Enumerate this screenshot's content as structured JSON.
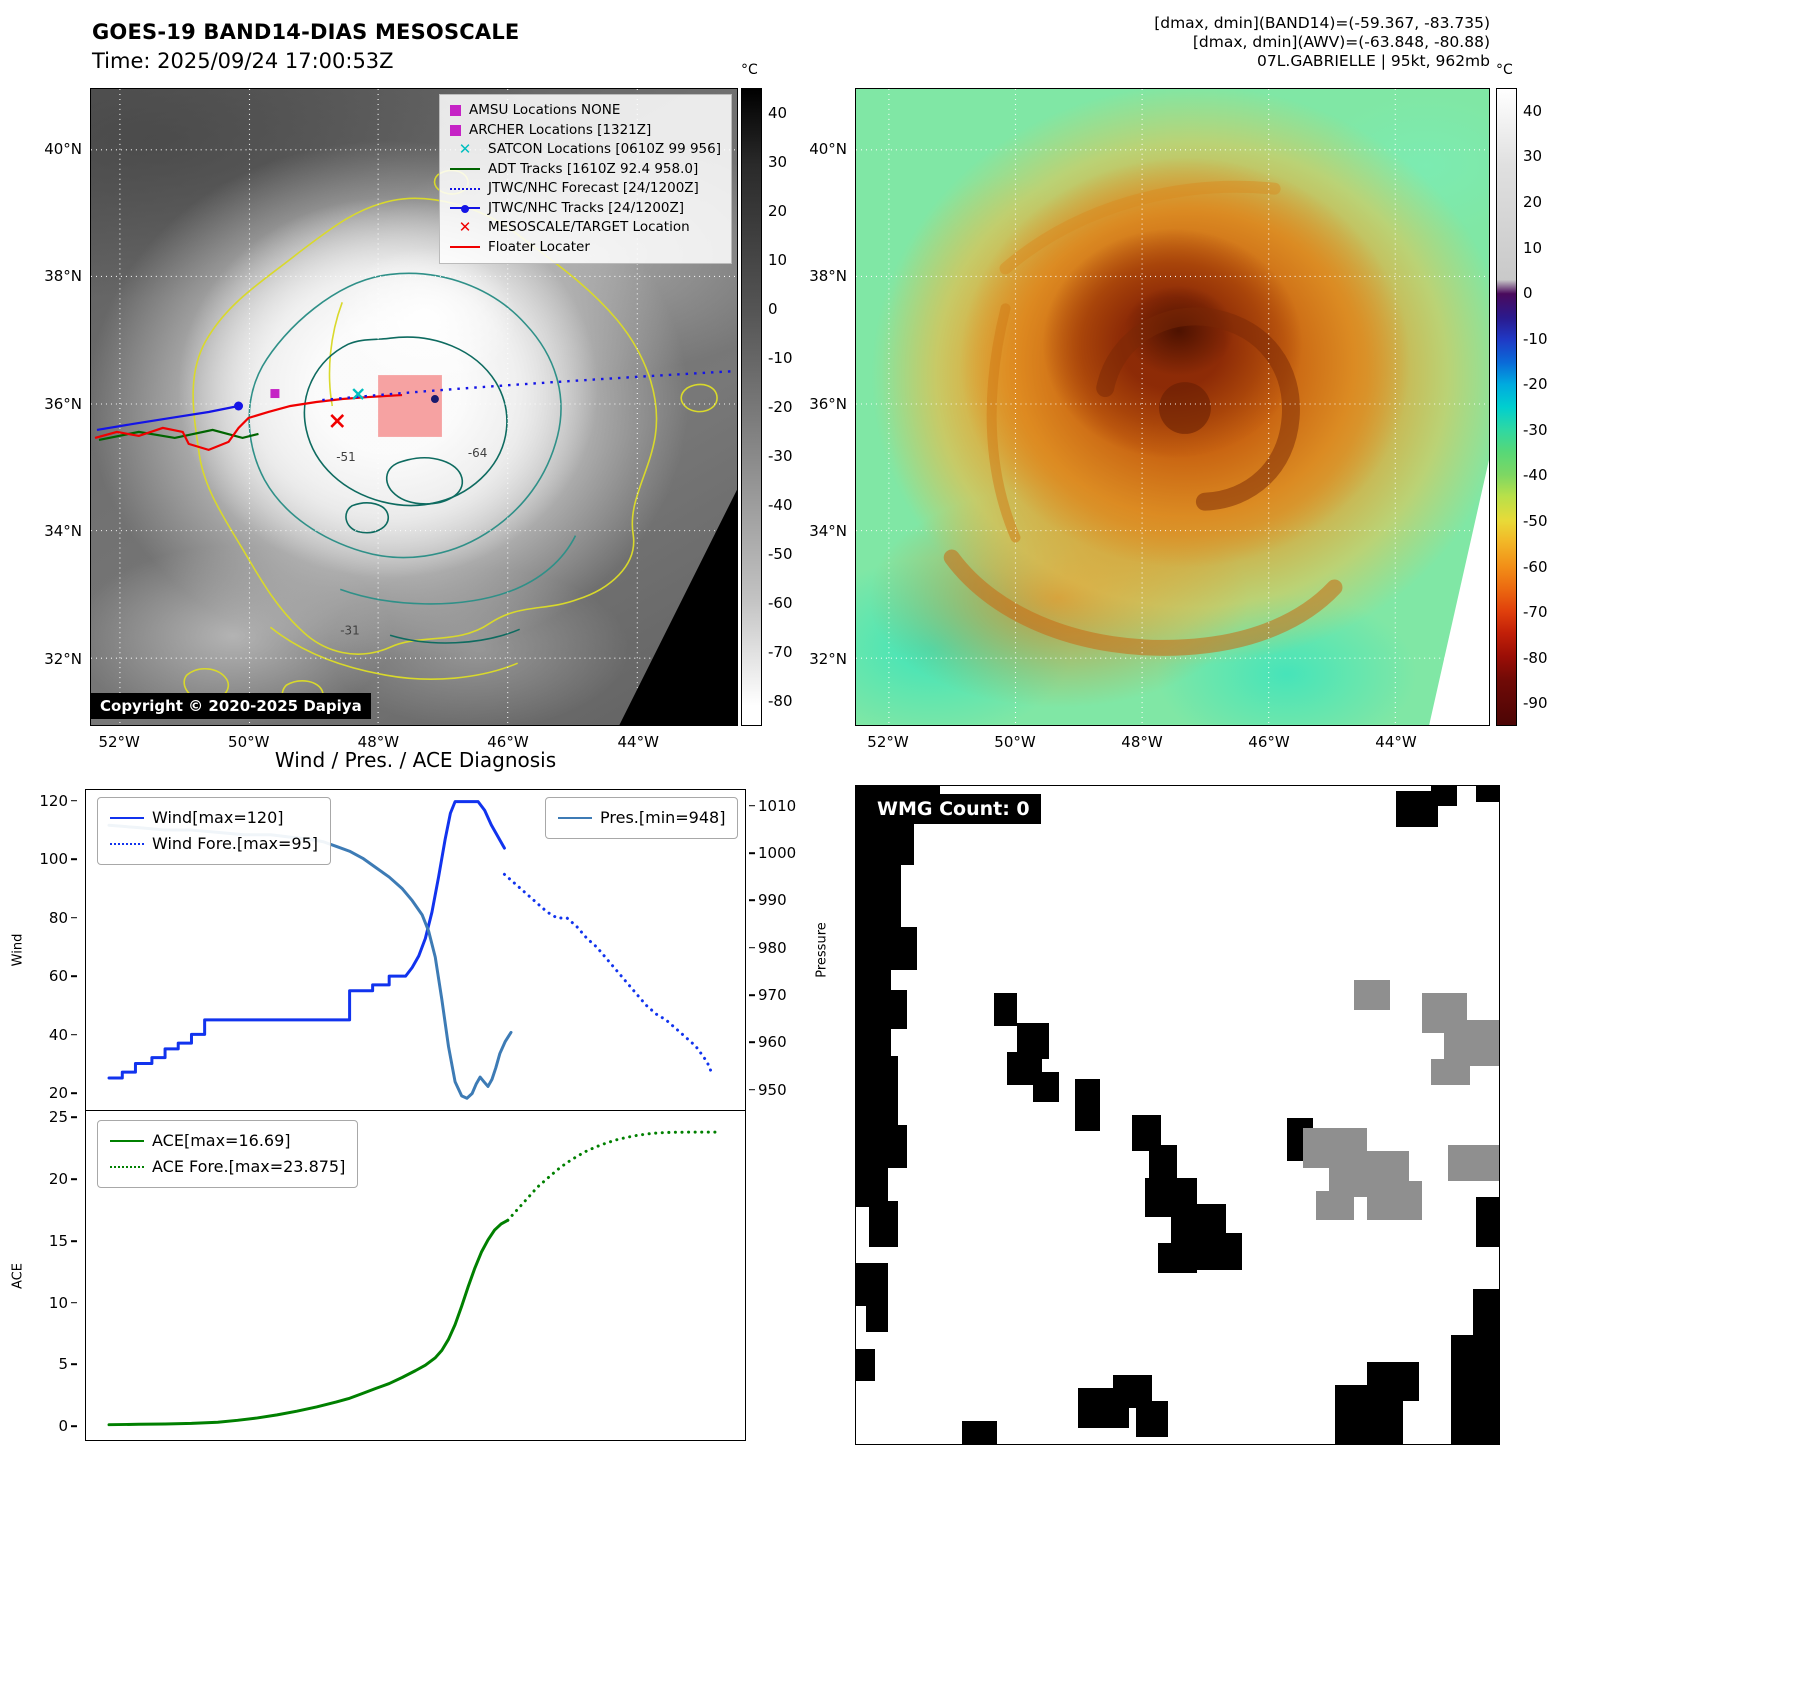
{
  "band14": {
    "title": "GOES-19 BAND14-DIAS MESOSCALE",
    "subtitle": "Time: 2025/09/24 17:00:53Z",
    "copyright": "Copyright © 2020-2025 Dapiya",
    "lat_ticks": [
      "40°N",
      "38°N",
      "36°N",
      "34°N",
      "32°N"
    ],
    "lon_ticks": [
      "52°W",
      "50°W",
      "48°W",
      "46°W",
      "44°W"
    ],
    "colorbar": {
      "unit": "°C",
      "domain": [
        45,
        -85
      ],
      "ticks": [
        40,
        30,
        20,
        10,
        0,
        -10,
        -20,
        -30,
        -40,
        -50,
        -60,
        -70,
        -80
      ]
    },
    "contour_labels": [
      {
        "text": "-64"
      },
      {
        "text": "-51"
      },
      {
        "text": "-31"
      }
    ],
    "legend": [
      {
        "label": "AMSU Locations NONE",
        "type": "square",
        "color": "#c523c5"
      },
      {
        "label": "ARCHER Locations [1321Z]",
        "type": "square",
        "color": "#c523c5"
      },
      {
        "label": "SATCON Locations [0610Z 99 956]",
        "type": "x",
        "color": "#00bfbf"
      },
      {
        "label": "ADT Tracks [1610Z 92.4 958.0]",
        "type": "line",
        "color": "#006400"
      },
      {
        "label": "JTWC/NHC Forecast [24/1200Z]",
        "type": "dotted",
        "color": "#1414e6"
      },
      {
        "label": "JTWC/NHC Tracks [24/1200Z]",
        "type": "line-dot",
        "color": "#1414e6"
      },
      {
        "label": "MESOSCALE/TARGET Location",
        "type": "x",
        "color": "#f00000"
      },
      {
        "label": "Floater Locater",
        "type": "line",
        "color": "#f00000"
      }
    ]
  },
  "awv": {
    "header_lines": [
      "[dmax, dmin](BAND14)=(-59.367, -83.735)",
      "[dmax, dmin](AWV)=(-63.848, -80.88)",
      "07L.GABRIELLE | 95kt, 962mb"
    ],
    "lat_ticks": [
      "40°N",
      "38°N",
      "36°N",
      "34°N",
      "32°N"
    ],
    "lon_ticks": [
      "52°W",
      "50°W",
      "48°W",
      "46°W",
      "44°W"
    ],
    "colorbar": {
      "unit": "°C",
      "domain": [
        45,
        -95
      ],
      "ticks": [
        40,
        30,
        20,
        10,
        0,
        -10,
        -20,
        -30,
        -40,
        -50,
        -60,
        -70,
        -80,
        -90
      ]
    }
  },
  "wmg": {
    "title": "WMG Count: 0",
    "colors": {
      "black": "#000000",
      "gray": "#8f8f8f"
    },
    "blocks": [
      [
        0,
        0,
        13,
        4.5,
        "b"
      ],
      [
        0,
        3,
        9,
        9,
        "b"
      ],
      [
        0,
        11,
        7,
        13,
        "b"
      ],
      [
        2.5,
        21.5,
        7,
        6.5,
        "b"
      ],
      [
        0,
        23,
        5.5,
        19,
        "b"
      ],
      [
        3.5,
        31,
        4.5,
        6,
        "b"
      ],
      [
        0,
        41,
        6.5,
        13,
        "b"
      ],
      [
        3,
        51.5,
        5,
        6.5,
        "b"
      ],
      [
        0,
        53,
        5,
        11,
        "b"
      ],
      [
        2,
        63,
        4.5,
        7,
        "b"
      ],
      [
        16.5,
        96.5,
        5.5,
        3.5,
        "b"
      ],
      [
        84,
        0.8,
        6.5,
        5.5,
        "b"
      ],
      [
        89.5,
        0,
        4,
        3,
        "b"
      ],
      [
        96.5,
        0,
        3.5,
        2.5,
        "b"
      ],
      [
        21.5,
        31.5,
        3.5,
        5,
        "b"
      ],
      [
        25,
        36,
        5,
        5.5,
        "b"
      ],
      [
        23.5,
        40.5,
        5.5,
        5,
        "b"
      ],
      [
        27.5,
        43.5,
        4,
        4.5,
        "b"
      ],
      [
        34,
        44.5,
        4,
        8,
        "b"
      ],
      [
        43,
        50,
        4.5,
        5.5,
        "b"
      ],
      [
        45.5,
        54.5,
        4.5,
        5.5,
        "b"
      ],
      [
        45,
        59.5,
        8,
        6,
        "b"
      ],
      [
        49,
        63.5,
        8.5,
        6.5,
        "b"
      ],
      [
        53,
        68,
        7,
        5.5,
        "b"
      ],
      [
        47,
        69.5,
        6,
        4.5,
        "b"
      ],
      [
        67,
        50.5,
        4,
        6.5,
        "b"
      ],
      [
        0,
        72.5,
        5,
        6.5,
        "b"
      ],
      [
        1.5,
        78,
        3.5,
        5,
        "b"
      ],
      [
        0,
        85.5,
        3,
        5,
        "b"
      ],
      [
        34.5,
        91.5,
        8,
        6,
        "b"
      ],
      [
        40,
        89.5,
        6,
        5,
        "b"
      ],
      [
        43.5,
        93.5,
        5,
        5.5,
        "b"
      ],
      [
        74.5,
        91,
        10.5,
        9,
        "b"
      ],
      [
        79.5,
        87.5,
        8,
        6,
        "b"
      ],
      [
        92.5,
        83.5,
        7.5,
        16.5,
        "b"
      ],
      [
        96,
        76.5,
        4,
        8,
        "b"
      ],
      [
        96.5,
        62.5,
        3.5,
        7.5,
        "b"
      ],
      [
        77.5,
        29.5,
        5.5,
        4.5,
        "g"
      ],
      [
        88,
        31.5,
        7,
        6,
        "g"
      ],
      [
        91.5,
        35.5,
        8.5,
        7,
        "g"
      ],
      [
        89.5,
        41.5,
        6,
        4,
        "g"
      ],
      [
        69.5,
        52,
        10,
        6,
        "g"
      ],
      [
        73.5,
        55.5,
        12.5,
        7,
        "g"
      ],
      [
        79.5,
        60,
        8.5,
        6,
        "g"
      ],
      [
        71.5,
        61.5,
        6,
        4.5,
        "g"
      ],
      [
        92,
        54.5,
        8,
        5.5,
        "g"
      ]
    ]
  },
  "chart_data": [
    {
      "type": "line",
      "title": "Wind / Pres. / ACE Diagnosis",
      "xlabel": "",
      "ylabel": "Wind",
      "y2label": "Pressure",
      "xlim": [
        0,
        100
      ],
      "ylim": [
        14,
        124
      ],
      "y2lim": [
        945.5,
        1013.5
      ],
      "yticks": [
        20,
        40,
        60,
        80,
        100,
        120
      ],
      "y2ticks": [
        950,
        960,
        970,
        980,
        990,
        1000,
        1010
      ],
      "grid": false,
      "legend_position": "upper left / upper right",
      "series": [
        {
          "key": "wind",
          "name": "Wind[max=120]",
          "axis": "y1",
          "style": "solid",
          "color": "#1133ee",
          "legend_box": "left",
          "points": [
            [
              3.5,
              25
            ],
            [
              5.5,
              25
            ],
            [
              5.5,
              27
            ],
            [
              7.5,
              27
            ],
            [
              7.5,
              30
            ],
            [
              10,
              30
            ],
            [
              10,
              32
            ],
            [
              12,
              32
            ],
            [
              12,
              35
            ],
            [
              14,
              35
            ],
            [
              14,
              37
            ],
            [
              16,
              37
            ],
            [
              16,
              40
            ],
            [
              18,
              40
            ],
            [
              18,
              45
            ],
            [
              22,
              45
            ],
            [
              40,
              45
            ],
            [
              40,
              55
            ],
            [
              43.5,
              55
            ],
            [
              43.5,
              57
            ],
            [
              46,
              57
            ],
            [
              46,
              60
            ],
            [
              48.5,
              60
            ],
            [
              49.5,
              63
            ],
            [
              50.5,
              67
            ],
            [
              51.5,
              73
            ],
            [
              52.5,
              82
            ],
            [
              53.5,
              94
            ],
            [
              54.5,
              107
            ],
            [
              55.3,
              116
            ],
            [
              56,
              120
            ],
            [
              59.5,
              120
            ],
            [
              60.5,
              117
            ],
            [
              61.5,
              112
            ],
            [
              62.5,
              108
            ],
            [
              63.5,
              104
            ]
          ]
        },
        {
          "key": "wind_forecast",
          "name": "Wind Fore.[max=95]",
          "axis": "y1",
          "style": "dotted",
          "color": "#1133ee",
          "legend_box": "left",
          "points": [
            [
              63.5,
              95
            ],
            [
              65,
              92
            ],
            [
              67,
              88
            ],
            [
              68.5,
              85
            ],
            [
              70,
              82
            ],
            [
              71.5,
              80
            ],
            [
              73,
              80
            ],
            [
              74.5,
              77
            ],
            [
              76,
              73
            ],
            [
              77.5,
              70
            ],
            [
              79,
              66
            ],
            [
              80.5,
              62
            ],
            [
              82,
              58
            ],
            [
              83.5,
              54
            ],
            [
              85,
              50
            ],
            [
              86.5,
              47
            ],
            [
              88,
              45
            ],
            [
              89.5,
              42
            ],
            [
              91,
              39
            ],
            [
              92.5,
              36
            ],
            [
              93.8,
              32
            ],
            [
              94.6,
              29
            ],
            [
              95,
              26
            ]
          ]
        },
        {
          "key": "pressure",
          "name": "Pres.[min=948]",
          "axis": "y2",
          "style": "solid",
          "color": "#3d7bb5",
          "legend_box": "right",
          "points": [
            [
              3.5,
              1006
            ],
            [
              8,
              1005.5
            ],
            [
              12,
              1005
            ],
            [
              16,
              1005
            ],
            [
              20,
              1004.5
            ],
            [
              24,
              1004
            ],
            [
              28,
              1004
            ],
            [
              31,
              1003.5
            ],
            [
              34,
              1003
            ],
            [
              36,
              1002.5
            ],
            [
              38,
              1001.5
            ],
            [
              40,
              1000.5
            ],
            [
              42,
              999
            ],
            [
              44,
              997
            ],
            [
              46,
              995
            ],
            [
              48,
              992.5
            ],
            [
              49.5,
              990
            ],
            [
              51,
              987
            ],
            [
              52,
              983.5
            ],
            [
              53,
              978
            ],
            [
              54,
              969
            ],
            [
              55,
              959
            ],
            [
              56,
              951.5
            ],
            [
              57,
              948.5
            ],
            [
              57.8,
              948
            ],
            [
              58.6,
              949
            ],
            [
              59.2,
              951
            ],
            [
              59.8,
              952.5
            ],
            [
              60.4,
              951.5
            ],
            [
              61,
              950.5
            ],
            [
              61.6,
              952
            ],
            [
              62.2,
              954.5
            ],
            [
              62.8,
              957.5
            ],
            [
              63.6,
              960
            ],
            [
              64.5,
              962
            ]
          ]
        }
      ]
    },
    {
      "type": "line",
      "title": "",
      "xlabel": "",
      "ylabel": "ACE",
      "xlim": [
        0,
        100
      ],
      "ylim": [
        -1.2,
        25.6
      ],
      "yticks": [
        0,
        5,
        10,
        15,
        20,
        25
      ],
      "grid": false,
      "series": [
        {
          "key": "ace",
          "name": "ACE[max=16.69]",
          "axis": "y1",
          "style": "solid",
          "color": "#008000",
          "legend_box": "left",
          "points": [
            [
              3.5,
              0.05
            ],
            [
              8,
              0.08
            ],
            [
              12,
              0.1
            ],
            [
              16,
              0.15
            ],
            [
              20,
              0.25
            ],
            [
              23,
              0.4
            ],
            [
              26,
              0.6
            ],
            [
              29,
              0.85
            ],
            [
              32,
              1.15
            ],
            [
              35,
              1.5
            ],
            [
              38,
              1.9
            ],
            [
              40,
              2.2
            ],
            [
              42,
              2.6
            ],
            [
              44,
              3.0
            ],
            [
              46,
              3.4
            ],
            [
              48,
              3.9
            ],
            [
              50,
              4.45
            ],
            [
              51.5,
              4.9
            ],
            [
              53,
              5.5
            ],
            [
              54,
              6.1
            ],
            [
              55,
              7.0
            ],
            [
              56,
              8.2
            ],
            [
              57,
              9.7
            ],
            [
              58,
              11.3
            ],
            [
              59,
              12.8
            ],
            [
              60,
              14.1
            ],
            [
              61,
              15.1
            ],
            [
              62,
              15.9
            ],
            [
              63,
              16.4
            ],
            [
              64,
              16.69
            ]
          ]
        },
        {
          "key": "ace_forecast",
          "name": "ACE Fore.[max=23.875]",
          "axis": "y1",
          "style": "dotted",
          "color": "#008000",
          "legend_box": "left",
          "points": [
            [
              64,
              16.69
            ],
            [
              65.5,
              17.6
            ],
            [
              67,
              18.5
            ],
            [
              68.5,
              19.4
            ],
            [
              70,
              20.1
            ],
            [
              71.5,
              20.8
            ],
            [
              73,
              21.4
            ],
            [
              74.5,
              21.9
            ],
            [
              76,
              22.35
            ],
            [
              77.5,
              22.7
            ],
            [
              79,
              23.0
            ],
            [
              80.5,
              23.25
            ],
            [
              82,
              23.45
            ],
            [
              83.5,
              23.6
            ],
            [
              85,
              23.72
            ],
            [
              86.5,
              23.8
            ],
            [
              88,
              23.85
            ],
            [
              89.5,
              23.87
            ],
            [
              91,
              23.875
            ],
            [
              93.5,
              23.875
            ],
            [
              96,
              23.875
            ]
          ]
        }
      ]
    }
  ]
}
